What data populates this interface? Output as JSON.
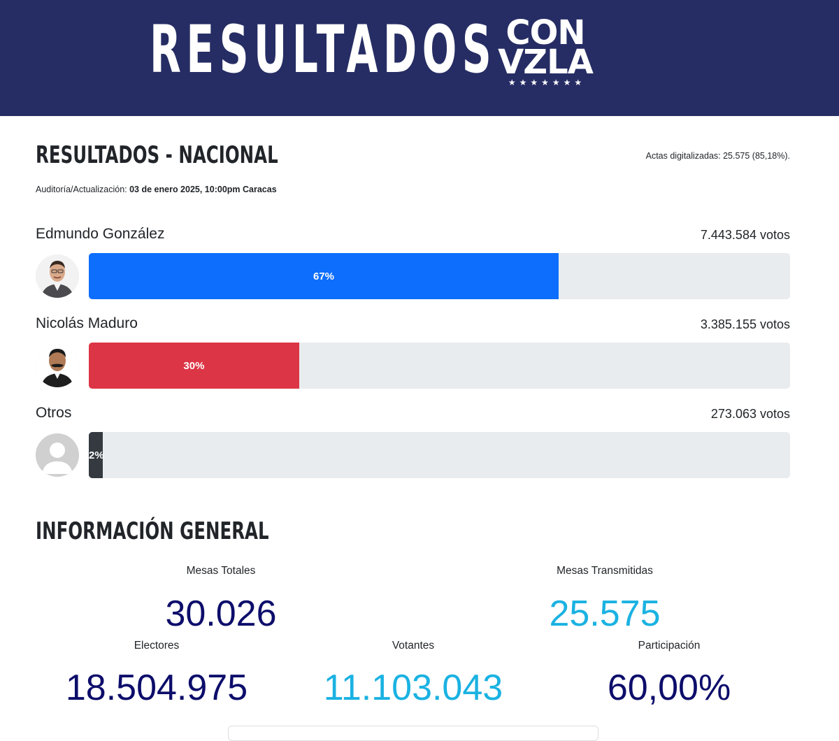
{
  "header": {
    "title": "RESULTADOS",
    "logo_line1": "CON",
    "logo_line2": "VZLA",
    "logo_stars": "★★★★★★★",
    "background": "#262d64"
  },
  "results": {
    "title": "RESULTADOS - NACIONAL",
    "actas": "Actas digitalizadas: 25.575 (85,18%).",
    "audit_label": "Auditoría/Actualización: ",
    "audit_value": "03 de enero 2025, 10:00pm Caracas",
    "candidates": [
      {
        "name": "Edmundo González",
        "votes": "7.443.584 votos",
        "percent_label": "67%",
        "percent": 67,
        "color": "#0d6efd",
        "avatar_icon": "person-photo-icon"
      },
      {
        "name": "Nicolás Maduro",
        "votes": "3.385.155 votos",
        "percent_label": "30%",
        "percent": 30,
        "color": "#dc3545",
        "avatar_icon": "person-photo-icon"
      },
      {
        "name": "Otros",
        "votes": "273.063 votos",
        "percent_label": "2%",
        "percent": 2,
        "color": "#343a40",
        "avatar_icon": "default-avatar-icon"
      }
    ]
  },
  "general": {
    "title": "INFORMACIÓN GENERAL",
    "mesas_totales_label": "Mesas Totales",
    "mesas_totales_value": "30.026",
    "mesas_transmitidas_label": "Mesas Transmitidas",
    "mesas_transmitidas_value": "25.575",
    "electores_label": "Electores",
    "electores_value": "18.504.975",
    "votantes_label": "Votantes",
    "votantes_value": "11.103.043",
    "participacion_label": "Participación",
    "participacion_value": "60,00%",
    "dark_color": "#0d0d6b",
    "light_color": "#1ab2e2"
  }
}
